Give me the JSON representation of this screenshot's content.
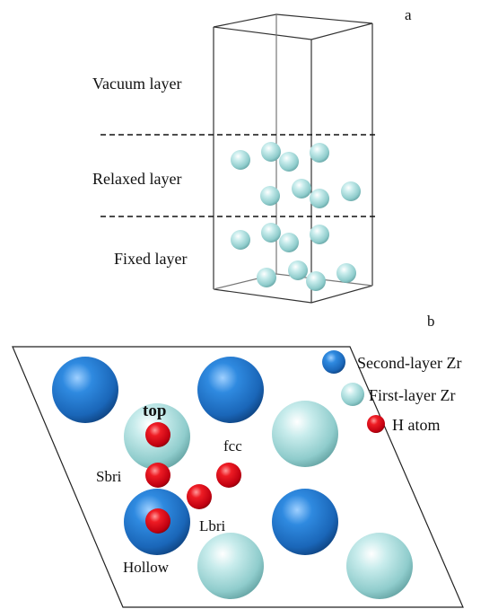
{
  "panel_a": {
    "label": "a",
    "layers": {
      "vacuum": "Vacuum layer",
      "relaxed": "Relaxed layer",
      "fixed": "Fixed layer"
    }
  },
  "panel_b": {
    "label": "b",
    "legend": {
      "second_layer": "Second-layer Zr",
      "first_layer": "First-layer Zr",
      "h_atom": "H atom"
    },
    "sites": {
      "top": "top",
      "fcc": "fcc",
      "sbri": "Sbri",
      "lbri": "Lbri",
      "hollow": "Hollow"
    }
  },
  "colors": {
    "second_layer_zr": "#1e73c8",
    "first_layer_zr": "#a8dcdc",
    "h_atom": "#e0101a"
  }
}
